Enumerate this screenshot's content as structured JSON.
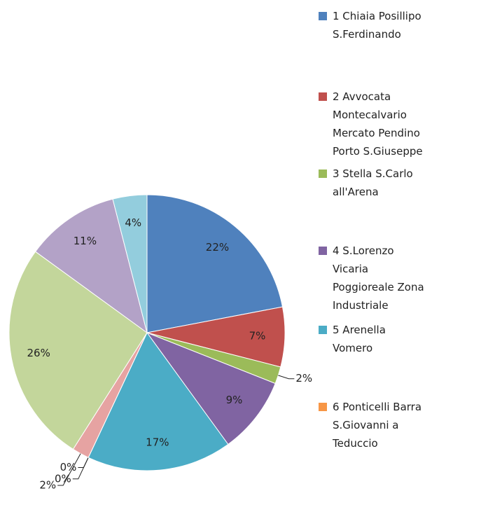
{
  "chart_data": {
    "type": "pie",
    "categories": [
      "1 Chiaia Posillipo S.Ferdinando",
      "2 Avvocata Montecalvario Mercato Pendino Porto S.Giuseppe",
      "3 Stella S.Carlo all'Arena",
      "4 S.Lorenzo Vicaria Poggioreale Zona Industriale",
      "5 Arenella Vomero",
      "6 Ponticelli Barra S.Giovanni a Teduccio",
      null,
      null,
      null,
      null,
      null
    ],
    "values": [
      22,
      7,
      2,
      9,
      17,
      0,
      0,
      2,
      26,
      11,
      4
    ],
    "value_labels": [
      "22%",
      "7%",
      "2%",
      "9%",
      "17%",
      "0%",
      "0%",
      "2%",
      "26%",
      "11%",
      "4%"
    ],
    "colors": [
      "#4f81bd",
      "#c0504d",
      "#9bbb59",
      "#8064a2",
      "#4bacc6",
      "#f79646",
      "#2c4d75",
      "#e6a3a2",
      "#c3d69b",
      "#b3a2c7",
      "#93cddd"
    ]
  }
}
